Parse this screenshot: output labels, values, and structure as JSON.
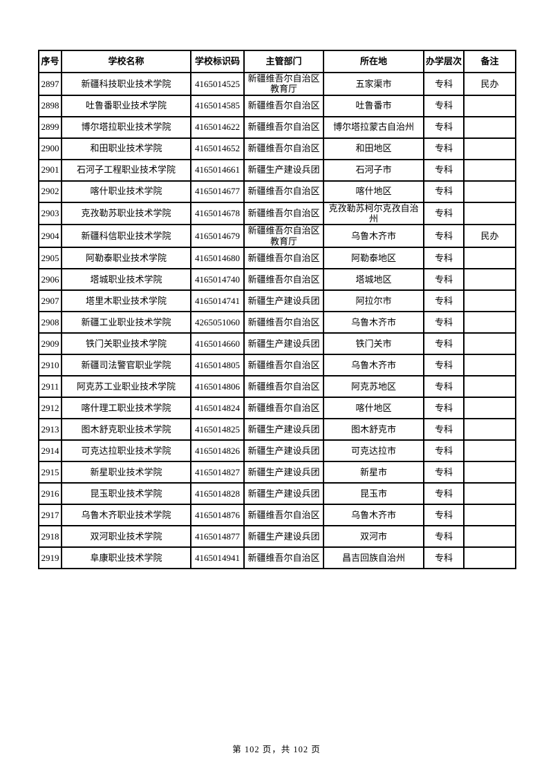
{
  "page": {
    "footer": "第 102 页，共 102 页",
    "background_color": "#ffffff",
    "text_color": "#000000",
    "border_color": "#000000"
  },
  "table": {
    "columns": [
      "序号",
      "学校名称",
      "学校标识码",
      "主管部门",
      "所在地",
      "办学层次",
      "备注"
    ],
    "column_keys": [
      "index",
      "school-name",
      "school-code",
      "authority",
      "location",
      "level",
      "remark"
    ],
    "rows": [
      [
        "2897",
        "新疆科技职业技术学院",
        "4165014525",
        "新疆维吾尔自治区教育厅",
        "五家渠市",
        "专科",
        "民办"
      ],
      [
        "2898",
        "吐鲁番职业技术学院",
        "4165014585",
        "新疆维吾尔自治区",
        "吐鲁番市",
        "专科",
        ""
      ],
      [
        "2899",
        "博尔塔拉职业技术学院",
        "4165014622",
        "新疆维吾尔自治区",
        "博尔塔拉蒙古自治州",
        "专科",
        ""
      ],
      [
        "2900",
        "和田职业技术学院",
        "4165014652",
        "新疆维吾尔自治区",
        "和田地区",
        "专科",
        ""
      ],
      [
        "2901",
        "石河子工程职业技术学院",
        "4165014661",
        "新疆生产建设兵团",
        "石河子市",
        "专科",
        ""
      ],
      [
        "2902",
        "喀什职业技术学院",
        "4165014677",
        "新疆维吾尔自治区",
        "喀什地区",
        "专科",
        ""
      ],
      [
        "2903",
        "克孜勒苏职业技术学院",
        "4165014678",
        "新疆维吾尔自治区",
        "克孜勒苏柯尔克孜自治州",
        "专科",
        ""
      ],
      [
        "2904",
        "新疆科信职业技术学院",
        "4165014679",
        "新疆维吾尔自治区教育厅",
        "乌鲁木齐市",
        "专科",
        "民办"
      ],
      [
        "2905",
        "阿勒泰职业技术学院",
        "4165014680",
        "新疆维吾尔自治区",
        "阿勒泰地区",
        "专科",
        ""
      ],
      [
        "2906",
        "塔城职业技术学院",
        "4165014740",
        "新疆维吾尔自治区",
        "塔城地区",
        "专科",
        ""
      ],
      [
        "2907",
        "塔里木职业技术学院",
        "4165014741",
        "新疆生产建设兵团",
        "阿拉尔市",
        "专科",
        ""
      ],
      [
        "2908",
        "新疆工业职业技术学院",
        "4265051060",
        "新疆维吾尔自治区",
        "乌鲁木齐市",
        "专科",
        ""
      ],
      [
        "2909",
        "铁门关职业技术学院",
        "4165014660",
        "新疆生产建设兵团",
        "铁门关市",
        "专科",
        ""
      ],
      [
        "2910",
        "新疆司法警官职业学院",
        "4165014805",
        "新疆维吾尔自治区",
        "乌鲁木齐市",
        "专科",
        ""
      ],
      [
        "2911",
        "阿克苏工业职业技术学院",
        "4165014806",
        "新疆维吾尔自治区",
        "阿克苏地区",
        "专科",
        ""
      ],
      [
        "2912",
        "喀什理工职业技术学院",
        "4165014824",
        "新疆维吾尔自治区",
        "喀什地区",
        "专科",
        ""
      ],
      [
        "2913",
        "图木舒克职业技术学院",
        "4165014825",
        "新疆生产建设兵团",
        "图木舒克市",
        "专科",
        ""
      ],
      [
        "2914",
        "可克达拉职业技术学院",
        "4165014826",
        "新疆生产建设兵团",
        "可克达拉市",
        "专科",
        ""
      ],
      [
        "2915",
        "新星职业技术学院",
        "4165014827",
        "新疆生产建设兵团",
        "新星市",
        "专科",
        ""
      ],
      [
        "2916",
        "昆玉职业技术学院",
        "4165014828",
        "新疆生产建设兵团",
        "昆玉市",
        "专科",
        ""
      ],
      [
        "2917",
        "乌鲁木齐职业技术学院",
        "4165014876",
        "新疆维吾尔自治区",
        "乌鲁木齐市",
        "专科",
        ""
      ],
      [
        "2918",
        "双河职业技术学院",
        "4165014877",
        "新疆生产建设兵团",
        "双河市",
        "专科",
        ""
      ],
      [
        "2919",
        "阜康职业技术学院",
        "4165014941",
        "新疆维吾尔自治区",
        "昌吉回族自治州",
        "专科",
        ""
      ]
    ]
  }
}
